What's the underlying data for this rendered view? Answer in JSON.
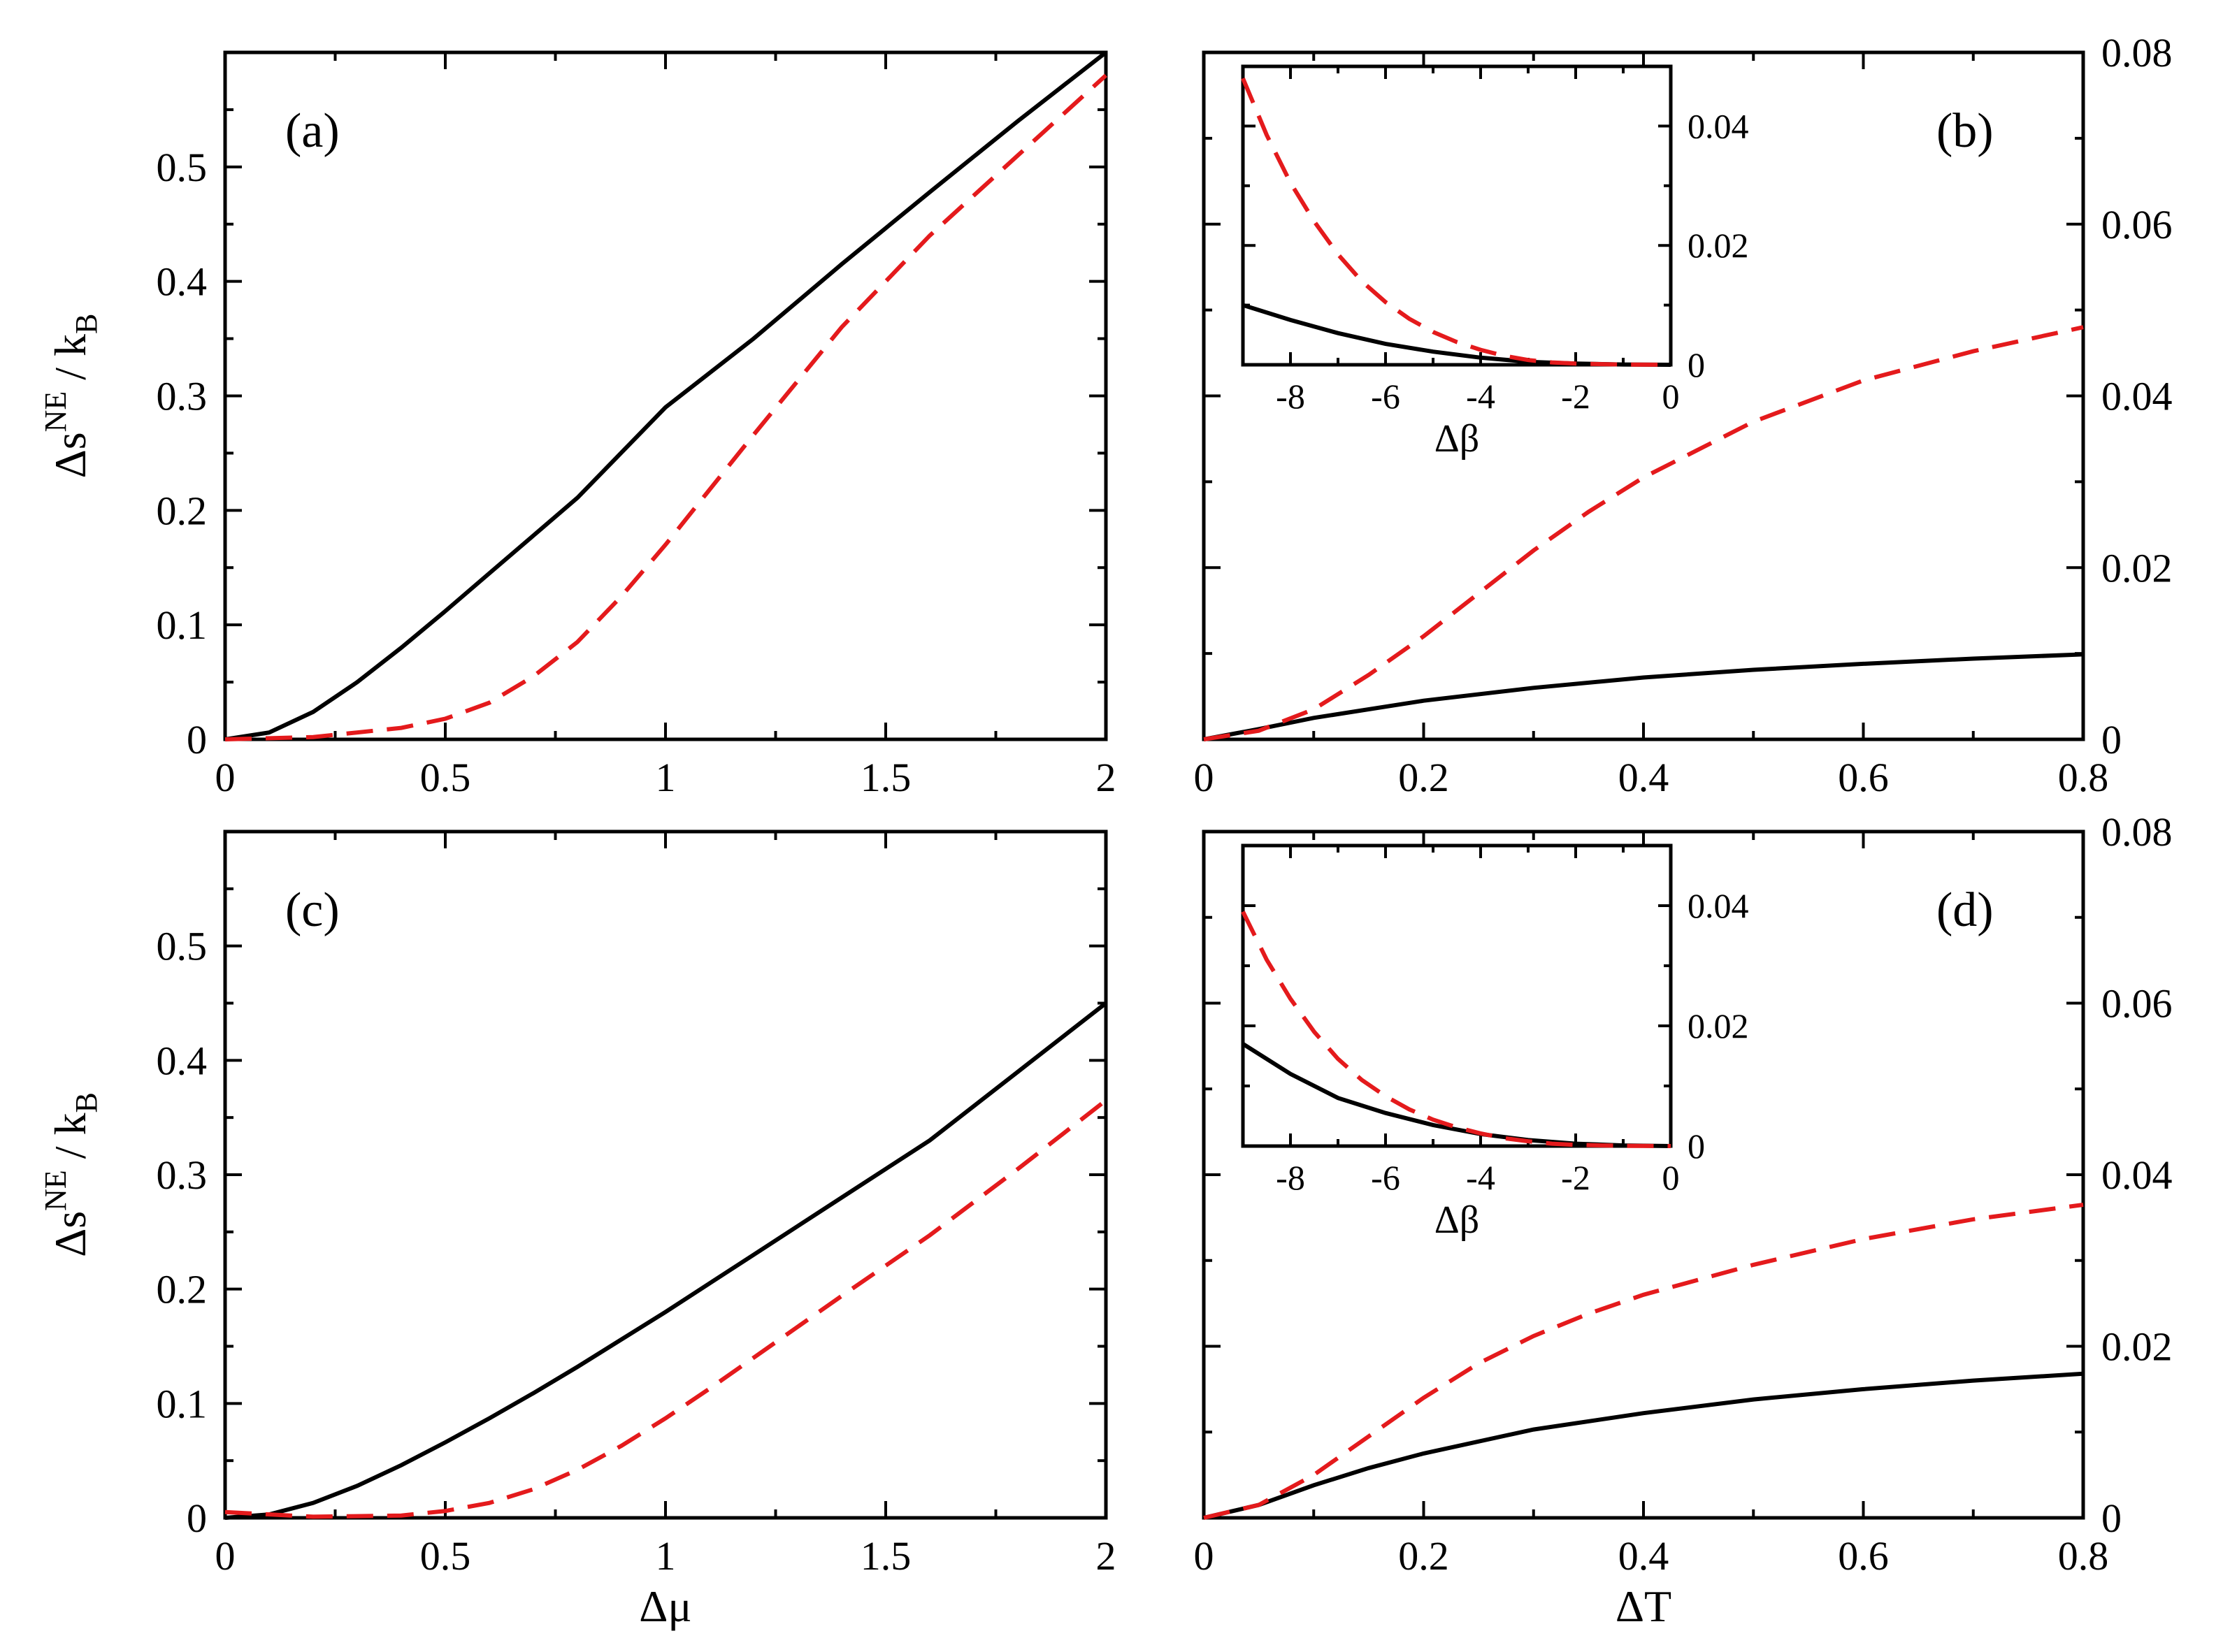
{
  "chart_data": [
    {
      "id": "a",
      "type": "line",
      "panel_label": "(a)",
      "xlabel": "",
      "ylabel": "Δs^NE / k_B",
      "xlim": [
        0,
        2
      ],
      "ylim": [
        0,
        0.6
      ],
      "xticks": [
        "0",
        "0.5",
        "1",
        "1.5",
        "2"
      ],
      "yticks": [
        "0",
        "0.1",
        "0.2",
        "0.3",
        "0.4",
        "0.5"
      ],
      "series": [
        {
          "name": "solid",
          "style": "solid",
          "color": "#000000",
          "x": [
            0,
            0.1,
            0.2,
            0.3,
            0.4,
            0.5,
            0.6,
            0.7,
            0.8,
            1.0,
            1.2,
            1.4,
            1.6,
            1.8,
            2.0
          ],
          "y": [
            0,
            0.006,
            0.024,
            0.05,
            0.08,
            0.112,
            0.145,
            0.178,
            0.211,
            0.29,
            0.35,
            0.415,
            0.478,
            0.54,
            0.6
          ]
        },
        {
          "name": "dashed",
          "style": "dashed",
          "color": "#e41a1c",
          "x": [
            0,
            0.2,
            0.4,
            0.5,
            0.6,
            0.7,
            0.8,
            0.9,
            1.0,
            1.1,
            1.2,
            1.3,
            1.4,
            1.6,
            1.8,
            2.0
          ],
          "y": [
            0,
            0.002,
            0.01,
            0.018,
            0.032,
            0.055,
            0.085,
            0.125,
            0.17,
            0.218,
            0.266,
            0.313,
            0.36,
            0.44,
            0.51,
            0.58
          ]
        }
      ]
    },
    {
      "id": "b",
      "type": "line",
      "panel_label": "(b)",
      "xlabel": "",
      "ylabel": "",
      "xlim": [
        0,
        0.8
      ],
      "ylim": [
        0,
        0.08
      ],
      "y_axis_side": "right",
      "xticks": [
        "0",
        "0.2",
        "0.4",
        "0.6",
        "0.8"
      ],
      "yticks": [
        "0",
        "0.02",
        "0.04",
        "0.06",
        "0.08"
      ],
      "series": [
        {
          "name": "solid",
          "style": "solid",
          "color": "#000000",
          "x": [
            0,
            0.05,
            0.1,
            0.2,
            0.3,
            0.4,
            0.5,
            0.6,
            0.7,
            0.8
          ],
          "y": [
            0,
            0.0012,
            0.0025,
            0.0045,
            0.006,
            0.0072,
            0.0081,
            0.0088,
            0.0094,
            0.0099
          ]
        },
        {
          "name": "dashed",
          "style": "dashed",
          "color": "#e41a1c",
          "x": [
            0,
            0.05,
            0.1,
            0.15,
            0.2,
            0.25,
            0.3,
            0.35,
            0.4,
            0.5,
            0.6,
            0.7,
            0.8
          ],
          "y": [
            0,
            0.001,
            0.0035,
            0.0075,
            0.012,
            0.017,
            0.022,
            0.0265,
            0.0305,
            0.037,
            0.0418,
            0.0452,
            0.048
          ]
        }
      ],
      "inset": {
        "xlabel": "Δβ",
        "xlim": [
          -9,
          0
        ],
        "ylim": [
          0,
          0.05
        ],
        "xticks": [
          "-8",
          "-6",
          "-4",
          "-2",
          "0"
        ],
        "yticks": [
          "0",
          "0.02",
          "0.04"
        ],
        "series": [
          {
            "name": "solid",
            "style": "solid",
            "color": "#000000",
            "x": [
              -9,
              -8,
              -7,
              -6,
              -5,
              -4,
              -3,
              -2,
              -1,
              0
            ],
            "y": [
              0.01,
              0.0075,
              0.0053,
              0.0035,
              0.0022,
              0.0012,
              0.0005,
              0.0002,
              5e-05,
              0
            ]
          },
          {
            "name": "dashed",
            "style": "dashed",
            "color": "#e41a1c",
            "x": [
              -9,
              -8.5,
              -8,
              -7.5,
              -7,
              -6.5,
              -6,
              -5.5,
              -5,
              -4.5,
              -4,
              -3.5,
              -3,
              -2.5,
              -2,
              -1,
              0
            ],
            "y": [
              0.048,
              0.0385,
              0.0305,
              0.024,
              0.0185,
              0.014,
              0.0105,
              0.0077,
              0.0055,
              0.0038,
              0.0025,
              0.0015,
              0.0008,
              0.0004,
              0.0002,
              3e-05,
              0
            ]
          }
        ]
      }
    },
    {
      "id": "c",
      "type": "line",
      "panel_label": "(c)",
      "xlabel": "Δμ",
      "ylabel": "Δs^NE / k_B",
      "xlim": [
        0,
        2
      ],
      "ylim": [
        0,
        0.6
      ],
      "xticks": [
        "0",
        "0.5",
        "1",
        "1.5",
        "2"
      ],
      "yticks": [
        "0",
        "0.1",
        "0.2",
        "0.3",
        "0.4",
        "0.5"
      ],
      "series": [
        {
          "name": "solid",
          "style": "solid",
          "color": "#000000",
          "x": [
            0,
            0.1,
            0.2,
            0.3,
            0.4,
            0.5,
            0.6,
            0.7,
            0.8,
            1.0,
            1.2,
            1.4,
            1.6,
            1.8,
            2.0
          ],
          "y": [
            0,
            0.003,
            0.013,
            0.028,
            0.046,
            0.066,
            0.087,
            0.109,
            0.132,
            0.18,
            0.23,
            0.28,
            0.33,
            0.39,
            0.45
          ]
        },
        {
          "name": "dashed",
          "style": "dashed",
          "color": "#e41a1c",
          "x": [
            0,
            0.2,
            0.4,
            0.5,
            0.6,
            0.7,
            0.8,
            0.9,
            1.0,
            1.1,
            1.2,
            1.3,
            1.4,
            1.6,
            1.8,
            2.0
          ],
          "y": [
            0.005,
            0.001,
            0.002,
            0.006,
            0.013,
            0.025,
            0.042,
            0.063,
            0.087,
            0.113,
            0.14,
            0.167,
            0.194,
            0.247,
            0.305,
            0.365
          ]
        }
      ]
    },
    {
      "id": "d",
      "type": "line",
      "panel_label": "(d)",
      "xlabel": "ΔT",
      "ylabel": "",
      "xlim": [
        0,
        0.8
      ],
      "ylim": [
        0,
        0.08
      ],
      "y_axis_side": "right",
      "xticks": [
        "0",
        "0.2",
        "0.4",
        "0.6",
        "0.8"
      ],
      "yticks": [
        "0",
        "0.02",
        "0.04",
        "0.06",
        "0.08"
      ],
      "series": [
        {
          "name": "solid",
          "style": "solid",
          "color": "#000000",
          "x": [
            0,
            0.05,
            0.1,
            0.15,
            0.2,
            0.3,
            0.4,
            0.5,
            0.6,
            0.7,
            0.8
          ],
          "y": [
            0,
            0.0015,
            0.0038,
            0.0058,
            0.0075,
            0.0103,
            0.0122,
            0.0138,
            0.015,
            0.016,
            0.0168
          ]
        },
        {
          "name": "dashed",
          "style": "dashed",
          "color": "#e41a1c",
          "x": [
            0,
            0.05,
            0.1,
            0.15,
            0.2,
            0.25,
            0.3,
            0.35,
            0.4,
            0.5,
            0.6,
            0.7,
            0.8
          ],
          "y": [
            0,
            0.0015,
            0.005,
            0.0095,
            0.014,
            0.018,
            0.0212,
            0.0238,
            0.026,
            0.0295,
            0.0325,
            0.0348,
            0.0365
          ]
        }
      ],
      "inset": {
        "xlabel": "Δβ",
        "xlim": [
          -9,
          0
        ],
        "ylim": [
          0,
          0.05
        ],
        "xticks": [
          "-8",
          "-6",
          "-4",
          "-2",
          "0"
        ],
        "yticks": [
          "0",
          "0.02",
          "0.04"
        ],
        "series": [
          {
            "name": "solid",
            "style": "solid",
            "color": "#000000",
            "x": [
              -9,
              -8,
              -7,
              -6,
              -5,
              -4,
              -3,
              -2,
              -1,
              0
            ],
            "y": [
              0.017,
              0.012,
              0.008,
              0.0055,
              0.0035,
              0.002,
              0.001,
              0.0004,
              0.0001,
              0
            ]
          },
          {
            "name": "dashed",
            "style": "dashed",
            "color": "#e41a1c",
            "x": [
              -9,
              -8.5,
              -8,
              -7.5,
              -7,
              -6.5,
              -6,
              -5.5,
              -5,
              -4.5,
              -4,
              -3.5,
              -3,
              -2.5,
              -2,
              -1,
              0
            ],
            "y": [
              0.039,
              0.031,
              0.0245,
              0.019,
              0.0145,
              0.011,
              0.0083,
              0.0061,
              0.0044,
              0.0031,
              0.0021,
              0.0013,
              0.0008,
              0.0004,
              0.0002,
              3e-05,
              0
            ]
          }
        ]
      }
    }
  ]
}
